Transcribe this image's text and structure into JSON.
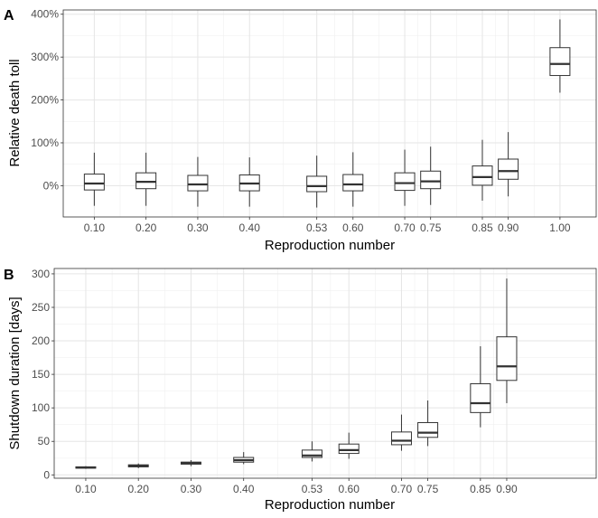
{
  "chart_data": [
    {
      "type": "box",
      "panel": "A",
      "xlabel": "Reproduction number",
      "ylabel": "Relative death toll",
      "xlim": [
        0.04,
        1.07
      ],
      "ylim": [
        -0.73,
        4.1
      ],
      "x_ticks": [
        0.1,
        0.2,
        0.3,
        0.4,
        0.53,
        0.6,
        0.7,
        0.75,
        0.85,
        0.9,
        1.0
      ],
      "x_tick_labels": [
        "0.10",
        "0.20",
        "0.30",
        "0.40",
        "0.53",
        "0.60",
        "0.70",
        "0.75",
        "0.85",
        "0.90",
        "1.00"
      ],
      "y_ticks": [
        0,
        1,
        2,
        3,
        4
      ],
      "y_tick_labels": [
        "0%",
        "100%",
        "200%",
        "300%",
        "400%"
      ],
      "grid": true,
      "boxes": [
        {
          "x": 0.1,
          "low": -0.47,
          "q1": -0.1,
          "median": 0.05,
          "q3": 0.27,
          "high": 0.77
        },
        {
          "x": 0.2,
          "low": -0.47,
          "q1": -0.07,
          "median": 0.09,
          "q3": 0.3,
          "high": 0.77
        },
        {
          "x": 0.3,
          "low": -0.49,
          "q1": -0.12,
          "median": 0.03,
          "q3": 0.24,
          "high": 0.67
        },
        {
          "x": 0.4,
          "low": -0.49,
          "q1": -0.12,
          "median": 0.05,
          "q3": 0.25,
          "high": 0.66
        },
        {
          "x": 0.53,
          "low": -0.51,
          "q1": -0.14,
          "median": -0.01,
          "q3": 0.22,
          "high": 0.7
        },
        {
          "x": 0.6,
          "low": -0.49,
          "q1": -0.12,
          "median": 0.03,
          "q3": 0.26,
          "high": 0.78
        },
        {
          "x": 0.7,
          "low": -0.47,
          "q1": -0.11,
          "median": 0.06,
          "q3": 0.3,
          "high": 0.84
        },
        {
          "x": 0.75,
          "low": -0.45,
          "q1": -0.07,
          "median": 0.1,
          "q3": 0.34,
          "high": 0.91
        },
        {
          "x": 0.85,
          "low": -0.35,
          "q1": 0.01,
          "median": 0.2,
          "q3": 0.46,
          "high": 1.07
        },
        {
          "x": 0.9,
          "low": -0.25,
          "q1": 0.15,
          "median": 0.34,
          "q3": 0.62,
          "high": 1.25
        },
        {
          "x": 1.0,
          "low": 2.17,
          "q1": 2.57,
          "median": 2.84,
          "q3": 3.22,
          "high": 3.88
        }
      ],
      "tag": "A"
    },
    {
      "type": "box",
      "panel": "B",
      "xlabel": "Reproduction number",
      "ylabel": "Shutdown duration [days]",
      "xlim": [
        0.04,
        1.07
      ],
      "ylim": [
        -5,
        308
      ],
      "x_ticks": [
        0.1,
        0.2,
        0.3,
        0.4,
        0.53,
        0.6,
        0.7,
        0.75,
        0.85,
        0.9
      ],
      "x_tick_labels": [
        "0.10",
        "0.20",
        "0.30",
        "0.40",
        "0.53",
        "0.60",
        "0.70",
        "0.75",
        "0.85",
        "0.90"
      ],
      "y_ticks": [
        0,
        50,
        100,
        150,
        200,
        250,
        300
      ],
      "y_tick_labels": [
        "0",
        "50",
        "100",
        "150",
        "200",
        "250",
        "300"
      ],
      "grid": true,
      "boxes": [
        {
          "x": 0.1,
          "low": 9,
          "q1": 10,
          "median": 11,
          "q3": 12,
          "high": 13
        },
        {
          "x": 0.2,
          "low": 10,
          "q1": 12,
          "median": 13,
          "q3": 15,
          "high": 17
        },
        {
          "x": 0.3,
          "low": 13,
          "q1": 16,
          "median": 18,
          "q3": 19,
          "high": 22
        },
        {
          "x": 0.4,
          "low": 16,
          "q1": 19,
          "median": 22,
          "q3": 26,
          "high": 34
        },
        {
          "x": 0.53,
          "low": 20,
          "q1": 26,
          "median": 29,
          "q3": 37,
          "high": 50
        },
        {
          "x": 0.6,
          "low": 24,
          "q1": 32,
          "median": 37,
          "q3": 46,
          "high": 63
        },
        {
          "x": 0.7,
          "low": 36,
          "q1": 45,
          "median": 51,
          "q3": 64,
          "high": 90
        },
        {
          "x": 0.75,
          "low": 43,
          "q1": 56,
          "median": 63,
          "q3": 78,
          "high": 111
        },
        {
          "x": 0.85,
          "low": 71,
          "q1": 93,
          "median": 107,
          "q3": 136,
          "high": 192
        },
        {
          "x": 0.9,
          "low": 107,
          "q1": 141,
          "median": 162,
          "q3": 206,
          "high": 293
        }
      ],
      "tag": "B"
    }
  ]
}
